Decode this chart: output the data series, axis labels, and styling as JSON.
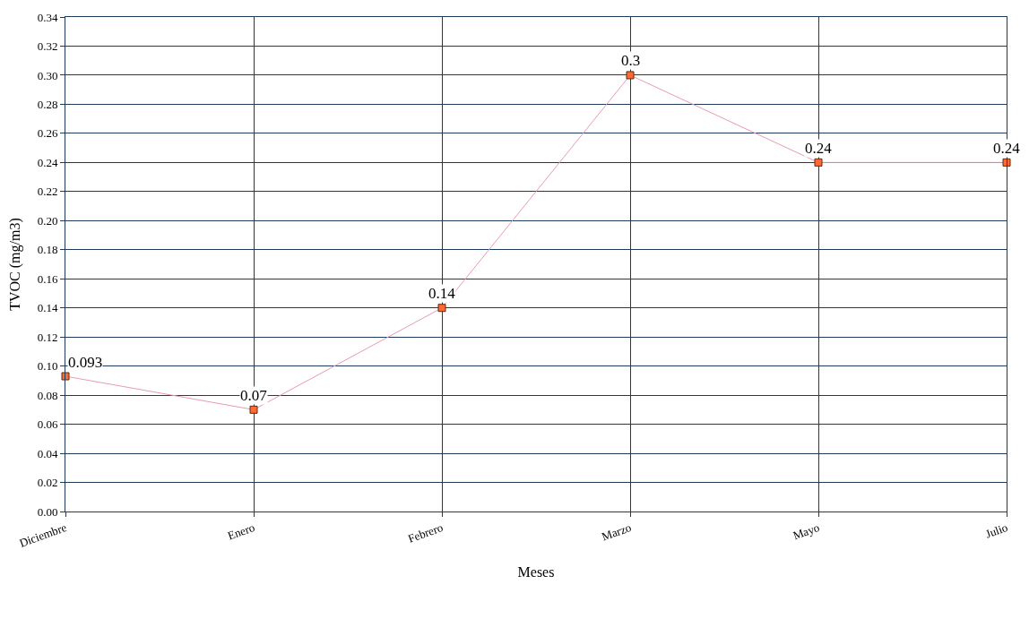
{
  "chart_data": {
    "type": "line",
    "xlabel": "Meses",
    "ylabel": "TVOC (mg/m3)",
    "categories": [
      "Diciembre",
      "Enero",
      "Febrero",
      "Marzo",
      "Mayo",
      "Julio"
    ],
    "series": [
      {
        "color": "#e89ab8",
        "values": [
          0.093,
          0.07,
          0.14,
          0.3,
          0.24,
          0.24
        ]
      }
    ],
    "marker": "square",
    "data_labels": true,
    "grid": true,
    "ylim": [
      0,
      0.34
    ],
    "yticks": [
      {
        "value": 0,
        "label": "0.00"
      },
      {
        "value": 0.02,
        "label": "0.02"
      },
      {
        "value": 0.04,
        "label": "0.04"
      },
      {
        "value": 0.06,
        "label": "0.06"
      },
      {
        "value": 0.08,
        "label": "0.08"
      },
      {
        "value": 0.1,
        "label": "0.10"
      },
      {
        "value": 0.12,
        "label": "0.12"
      },
      {
        "value": 0.14,
        "label": "0.14"
      },
      {
        "value": 0.16,
        "label": "0.16"
      },
      {
        "value": 0.18,
        "label": "0.18"
      },
      {
        "value": 0.2,
        "label": "0.20"
      },
      {
        "value": 0.22,
        "label": "0.22"
      },
      {
        "value": 0.24,
        "label": "0.24"
      },
      {
        "value": 0.26,
        "label": "0.26"
      },
      {
        "value": 0.28,
        "label": "0.28"
      },
      {
        "value": 0.3,
        "label": "0.30"
      },
      {
        "value": 0.32,
        "label": "0.32"
      },
      {
        "value": 0.34,
        "label": "0.34"
      }
    ]
  }
}
